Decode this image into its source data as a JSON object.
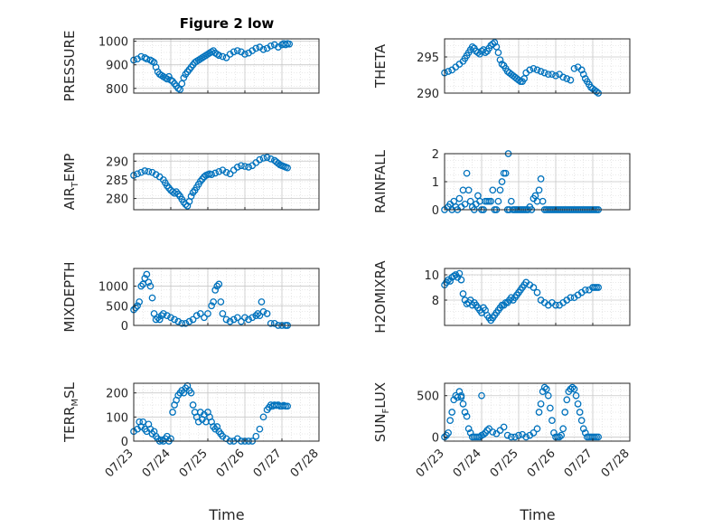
{
  "figure": {
    "title": "Figure 2 low",
    "xlabel": "Time",
    "marker_color": "#0072BD",
    "xticks": [
      "07/23",
      "07/24",
      "07/25",
      "07/26",
      "07/27",
      "07/28"
    ]
  },
  "chart_data": [
    {
      "type": "scatter",
      "ylabel": {
        "main": "PRESSURE",
        "sub": ""
      },
      "ylim": [
        780,
        1010
      ],
      "yticks": [
        800,
        900,
        1000
      ],
      "x_unit": "days since 07/23",
      "xlim": [
        0,
        5
      ],
      "grid": true,
      "x": [
        0.0,
        0.1,
        0.2,
        0.3,
        0.35,
        0.45,
        0.5,
        0.55,
        0.6,
        0.65,
        0.7,
        0.75,
        0.8,
        0.85,
        0.9,
        0.95,
        1.0,
        1.05,
        1.1,
        1.15,
        1.2,
        1.25,
        1.3,
        1.35,
        1.4,
        1.45,
        1.5,
        1.55,
        1.6,
        1.65,
        1.7,
        1.75,
        1.8,
        1.85,
        1.9,
        1.95,
        2.0,
        2.05,
        2.1,
        2.15,
        2.2,
        2.25,
        2.3,
        2.4,
        2.5,
        2.6,
        2.7,
        2.8,
        2.9,
        3.0,
        3.1,
        3.2,
        3.3,
        3.4,
        3.5,
        3.6,
        3.7,
        3.8,
        3.9,
        4.0,
        4.05,
        4.1,
        4.15,
        4.2
      ],
      "y": [
        920,
        925,
        935,
        930,
        925,
        920,
        915,
        910,
        890,
        870,
        860,
        855,
        850,
        845,
        840,
        850,
        835,
        830,
        820,
        810,
        800,
        795,
        820,
        845,
        860,
        870,
        880,
        890,
        900,
        910,
        915,
        920,
        925,
        930,
        935,
        940,
        945,
        950,
        955,
        960,
        950,
        945,
        940,
        935,
        930,
        945,
        955,
        960,
        955,
        945,
        950,
        960,
        970,
        975,
        965,
        970,
        980,
        985,
        975,
        985,
        990,
        985,
        990,
        988
      ]
    },
    {
      "type": "scatter",
      "ylabel": {
        "main": "THETA",
        "sub": ""
      },
      "ylim": [
        290,
        297.5
      ],
      "yticks": [
        290,
        295
      ],
      "x_unit": "days since 07/23",
      "xlim": [
        0,
        5
      ],
      "grid": true,
      "x": [
        0.0,
        0.1,
        0.2,
        0.3,
        0.4,
        0.5,
        0.55,
        0.6,
        0.65,
        0.7,
        0.75,
        0.8,
        0.85,
        0.9,
        0.95,
        1.0,
        1.05,
        1.1,
        1.15,
        1.2,
        1.25,
        1.3,
        1.35,
        1.4,
        1.45,
        1.5,
        1.55,
        1.6,
        1.65,
        1.7,
        1.75,
        1.8,
        1.85,
        1.9,
        1.95,
        2.0,
        2.05,
        2.1,
        2.15,
        2.2,
        2.3,
        2.4,
        2.5,
        2.6,
        2.7,
        2.8,
        2.9,
        3.0,
        3.1,
        3.2,
        3.3,
        3.4,
        3.5,
        3.6,
        3.7,
        3.75,
        3.8,
        3.85,
        3.9,
        3.95,
        4.0,
        4.05,
        4.1,
        4.15
      ],
      "y": [
        292.8,
        293.0,
        293.2,
        293.6,
        294.0,
        294.4,
        294.8,
        295.2,
        295.6,
        296.0,
        296.4,
        296.2,
        295.8,
        295.6,
        295.4,
        295.8,
        296.0,
        295.6,
        295.8,
        296.2,
        296.6,
        296.8,
        297.0,
        296.4,
        295.6,
        294.6,
        294.0,
        293.8,
        293.4,
        293.0,
        292.8,
        292.6,
        292.4,
        292.2,
        292.0,
        291.8,
        291.6,
        291.6,
        292.0,
        292.8,
        293.2,
        293.4,
        293.2,
        293.0,
        292.8,
        292.6,
        292.6,
        292.4,
        292.6,
        292.2,
        292.0,
        291.8,
        293.4,
        293.6,
        293.2,
        292.6,
        292.0,
        291.6,
        291.2,
        290.8,
        290.6,
        290.4,
        290.2,
        290.0
      ]
    },
    {
      "type": "scatter",
      "ylabel": {
        "main": "AIR",
        "sub": "T",
        "tail": "EMP"
      },
      "ylim": [
        277,
        292
      ],
      "yticks": [
        280,
        285,
        290
      ],
      "x_unit": "days since 07/23",
      "xlim": [
        0,
        5
      ],
      "grid": true,
      "x": [
        0.0,
        0.1,
        0.2,
        0.3,
        0.4,
        0.5,
        0.6,
        0.7,
        0.8,
        0.85,
        0.9,
        0.95,
        1.0,
        1.05,
        1.1,
        1.15,
        1.2,
        1.25,
        1.3,
        1.35,
        1.4,
        1.45,
        1.5,
        1.55,
        1.6,
        1.65,
        1.7,
        1.75,
        1.8,
        1.85,
        1.9,
        1.95,
        2.0,
        2.05,
        2.1,
        2.2,
        2.3,
        2.4,
        2.5,
        2.6,
        2.7,
        2.8,
        2.9,
        3.0,
        3.1,
        3.2,
        3.3,
        3.4,
        3.5,
        3.6,
        3.7,
        3.8,
        3.85,
        3.9,
        3.95,
        4.0,
        4.05,
        4.1,
        4.15
      ],
      "y": [
        286.2,
        286.6,
        287.0,
        287.4,
        287.2,
        287.0,
        286.4,
        285.8,
        285.0,
        284.2,
        283.4,
        282.8,
        282.2,
        281.8,
        281.4,
        281.8,
        281.2,
        280.6,
        279.8,
        279.0,
        278.4,
        278.0,
        279.2,
        280.6,
        281.6,
        282.2,
        283.0,
        283.8,
        284.6,
        285.2,
        285.8,
        286.2,
        286.4,
        286.6,
        286.4,
        286.8,
        287.2,
        287.6,
        287.0,
        286.6,
        287.6,
        288.4,
        288.8,
        288.6,
        288.4,
        288.8,
        289.6,
        290.4,
        290.8,
        291.0,
        290.6,
        290.2,
        289.8,
        289.4,
        289.0,
        288.8,
        288.6,
        288.4,
        288.2
      ]
    },
    {
      "type": "scatter",
      "ylabel": {
        "main": "RAINFALL",
        "sub": ""
      },
      "ylim": [
        0,
        2
      ],
      "yticks": [
        0,
        1,
        2
      ],
      "x_unit": "days since 07/23",
      "xlim": [
        0,
        5
      ],
      "grid": true,
      "x": [
        0.0,
        0.1,
        0.15,
        0.2,
        0.25,
        0.3,
        0.35,
        0.4,
        0.45,
        0.5,
        0.55,
        0.6,
        0.65,
        0.7,
        0.75,
        0.8,
        0.85,
        0.9,
        0.95,
        1.0,
        1.05,
        1.1,
        1.15,
        1.2,
        1.25,
        1.3,
        1.35,
        1.4,
        1.45,
        1.5,
        1.55,
        1.6,
        1.65,
        1.7,
        1.75,
        1.8,
        1.85,
        1.9,
        1.95,
        2.0,
        2.05,
        2.1,
        2.15,
        2.2,
        2.25,
        2.3,
        2.35,
        2.4,
        2.45,
        2.5,
        2.55,
        2.6,
        2.65,
        2.7,
        2.75,
        2.8,
        2.85,
        2.9,
        2.95,
        3.0,
        3.05,
        3.1,
        3.15,
        3.2,
        3.25,
        3.3,
        3.35,
        3.4,
        3.45,
        3.5,
        3.55,
        3.6,
        3.65,
        3.7,
        3.75,
        3.8,
        3.85,
        3.9,
        3.95,
        4.0,
        4.05,
        4.1,
        4.15
      ],
      "y": [
        0,
        0.1,
        0.2,
        0,
        0.3,
        0.1,
        0,
        0.4,
        0.1,
        0.7,
        0.2,
        1.3,
        0.7,
        0.3,
        0.1,
        0,
        0.2,
        0.5,
        0.3,
        0,
        0,
        0.3,
        0.3,
        0.3,
        0.3,
        0.7,
        0,
        0,
        0.3,
        0.7,
        1.0,
        1.3,
        1.3,
        0,
        0,
        0.3,
        0,
        0,
        0,
        0,
        0,
        0,
        0,
        0,
        0,
        0.1,
        0,
        0.4,
        0.5,
        0.3,
        0.7,
        1.1,
        0.3,
        0,
        0,
        0,
        0,
        0,
        0,
        0,
        0,
        0,
        0,
        0,
        0,
        0,
        0,
        0,
        0,
        0,
        0,
        0,
        0,
        0,
        0,
        0,
        0,
        0,
        0,
        0,
        0,
        0,
        0
      ],
      "extra": {
        "x": [
          1.72
        ],
        "y": [
          2.0
        ]
      }
    },
    {
      "type": "scatter",
      "ylabel": {
        "main": "MIXDEPTH",
        "sub": ""
      },
      "ylim": [
        0,
        1450
      ],
      "yticks": [
        0,
        500,
        1000
      ],
      "x_unit": "days since 07/23",
      "xlim": [
        0,
        5
      ],
      "grid": true,
      "x": [
        0.0,
        0.05,
        0.1,
        0.15,
        0.2,
        0.25,
        0.3,
        0.35,
        0.4,
        0.45,
        0.5,
        0.55,
        0.6,
        0.65,
        0.7,
        0.75,
        0.8,
        0.9,
        1.0,
        1.1,
        1.2,
        1.3,
        1.4,
        1.5,
        1.6,
        1.7,
        1.8,
        1.9,
        2.0,
        2.1,
        2.15,
        2.2,
        2.25,
        2.3,
        2.35,
        2.4,
        2.5,
        2.6,
        2.7,
        2.8,
        2.9,
        3.0,
        3.1,
        3.2,
        3.3,
        3.35,
        3.4,
        3.45,
        3.5,
        3.6,
        3.7,
        3.8,
        3.9,
        4.0,
        4.1,
        4.15
      ],
      "y": [
        400,
        450,
        500,
        600,
        1000,
        1050,
        1200,
        1300,
        1100,
        1000,
        700,
        300,
        150,
        200,
        150,
        250,
        300,
        250,
        200,
        150,
        100,
        50,
        50,
        100,
        150,
        250,
        300,
        200,
        300,
        500,
        600,
        900,
        1000,
        1050,
        600,
        300,
        150,
        100,
        150,
        200,
        100,
        200,
        150,
        200,
        250,
        300,
        250,
        600,
        350,
        300,
        50,
        50,
        0,
        0,
        0,
        0
      ]
    },
    {
      "type": "scatter",
      "ylabel": {
        "main": "H2OMIXRA",
        "sub": ""
      },
      "ylim": [
        6,
        10.5
      ],
      "yticks": [
        8,
        10
      ],
      "x_unit": "days since 07/23",
      "xlim": [
        0,
        5
      ],
      "grid": true,
      "x": [
        0.0,
        0.05,
        0.1,
        0.15,
        0.2,
        0.25,
        0.3,
        0.35,
        0.4,
        0.45,
        0.5,
        0.55,
        0.6,
        0.65,
        0.7,
        0.75,
        0.8,
        0.85,
        0.9,
        0.95,
        1.0,
        1.05,
        1.1,
        1.15,
        1.2,
        1.25,
        1.3,
        1.35,
        1.4,
        1.45,
        1.5,
        1.55,
        1.6,
        1.65,
        1.7,
        1.75,
        1.8,
        1.85,
        1.9,
        1.95,
        2.0,
        2.05,
        2.1,
        2.15,
        2.2,
        2.3,
        2.4,
        2.5,
        2.6,
        2.7,
        2.8,
        2.9,
        3.0,
        3.1,
        3.2,
        3.3,
        3.4,
        3.5,
        3.6,
        3.7,
        3.8,
        3.9,
        4.0,
        4.05,
        4.1,
        4.15
      ],
      "y": [
        9.2,
        9.4,
        9.6,
        9.5,
        9.8,
        9.9,
        10.0,
        9.8,
        10.1,
        9.6,
        8.5,
        8.0,
        7.7,
        7.8,
        8.0,
        7.6,
        7.8,
        7.6,
        7.4,
        7.2,
        7.0,
        7.4,
        7.2,
        6.8,
        6.6,
        6.4,
        6.6,
        6.8,
        7.0,
        7.2,
        7.4,
        7.6,
        7.6,
        7.8,
        7.8,
        8.0,
        8.2,
        8.0,
        8.2,
        8.4,
        8.6,
        8.8,
        9.0,
        9.2,
        9.4,
        9.2,
        9.0,
        8.6,
        8.0,
        7.8,
        7.6,
        7.8,
        7.6,
        7.6,
        7.8,
        8.0,
        8.2,
        8.2,
        8.4,
        8.6,
        8.8,
        8.8,
        9.0,
        9.0,
        9.0,
        9.0
      ]
    },
    {
      "type": "scatter",
      "ylabel": {
        "main": "TERR",
        "sub": "M",
        "tail": "SL"
      },
      "ylim": [
        0,
        240
      ],
      "yticks": [
        0,
        100,
        200
      ],
      "x_unit": "days since 07/23",
      "xlim": [
        0,
        5
      ],
      "grid": true,
      "x": [
        0.0,
        0.1,
        0.15,
        0.2,
        0.25,
        0.3,
        0.35,
        0.4,
        0.45,
        0.5,
        0.55,
        0.6,
        0.65,
        0.7,
        0.75,
        0.8,
        0.85,
        0.9,
        0.95,
        1.0,
        1.05,
        1.1,
        1.15,
        1.2,
        1.25,
        1.3,
        1.35,
        1.4,
        1.45,
        1.5,
        1.55,
        1.6,
        1.65,
        1.7,
        1.75,
        1.8,
        1.85,
        1.9,
        1.95,
        2.0,
        2.05,
        2.1,
        2.15,
        2.2,
        2.25,
        2.3,
        2.35,
        2.4,
        2.5,
        2.6,
        2.7,
        2.8,
        2.9,
        3.0,
        3.1,
        3.2,
        3.3,
        3.4,
        3.5,
        3.6,
        3.65,
        3.7,
        3.75,
        3.8,
        3.85,
        3.9,
        3.95,
        4.0,
        4.05,
        4.1,
        4.15
      ],
      "y": [
        40,
        50,
        80,
        60,
        80,
        50,
        40,
        70,
        50,
        30,
        40,
        20,
        10,
        0,
        5,
        0,
        10,
        20,
        0,
        10,
        120,
        150,
        170,
        190,
        200,
        210,
        200,
        220,
        230,
        210,
        200,
        150,
        120,
        100,
        80,
        120,
        90,
        110,
        80,
        120,
        100,
        80,
        60,
        50,
        60,
        40,
        30,
        20,
        10,
        0,
        0,
        10,
        0,
        0,
        0,
        0,
        20,
        50,
        100,
        130,
        140,
        150,
        145,
        150,
        148,
        150,
        145,
        145,
        148,
        145,
        145
      ]
    },
    {
      "type": "scatter",
      "ylabel": {
        "main": "SUN",
        "sub": "F",
        "tail": "LUX"
      },
      "ylim": [
        -50,
        650
      ],
      "yticks": [
        0,
        500
      ],
      "x_unit": "days since 07/23",
      "xlim": [
        0,
        5
      ],
      "grid": true,
      "x": [
        0.0,
        0.05,
        0.1,
        0.15,
        0.2,
        0.25,
        0.3,
        0.35,
        0.4,
        0.45,
        0.5,
        0.55,
        0.6,
        0.65,
        0.7,
        0.75,
        0.8,
        0.85,
        0.9,
        0.95,
        1.0,
        1.05,
        1.1,
        1.15,
        1.2,
        1.3,
        1.4,
        1.5,
        1.6,
        1.7,
        1.8,
        1.9,
        2.0,
        2.1,
        2.2,
        2.3,
        2.4,
        2.5,
        2.55,
        2.6,
        2.65,
        2.7,
        2.75,
        2.8,
        2.85,
        2.9,
        2.95,
        3.0,
        3.05,
        3.1,
        3.15,
        3.2,
        3.25,
        3.3,
        3.35,
        3.4,
        3.45,
        3.5,
        3.55,
        3.6,
        3.65,
        3.7,
        3.75,
        3.8,
        3.85,
        3.9,
        3.95,
        4.0,
        4.05,
        4.1,
        4.15
      ],
      "y": [
        0,
        20,
        50,
        200,
        300,
        450,
        500,
        480,
        550,
        500,
        400,
        300,
        250,
        100,
        50,
        0,
        0,
        0,
        0,
        0,
        20,
        30,
        50,
        80,
        100,
        60,
        40,
        80,
        120,
        20,
        0,
        0,
        20,
        30,
        0,
        20,
        50,
        100,
        300,
        400,
        550,
        600,
        580,
        500,
        350,
        200,
        50,
        0,
        0,
        0,
        20,
        100,
        300,
        450,
        550,
        580,
        600,
        580,
        500,
        400,
        300,
        200,
        100,
        50,
        0,
        0,
        0,
        0,
        0,
        0,
        0
      ],
      "extra": {
        "x": [
          0.45,
          1.0
        ],
        "y": [
          480,
          500
        ]
      }
    }
  ]
}
